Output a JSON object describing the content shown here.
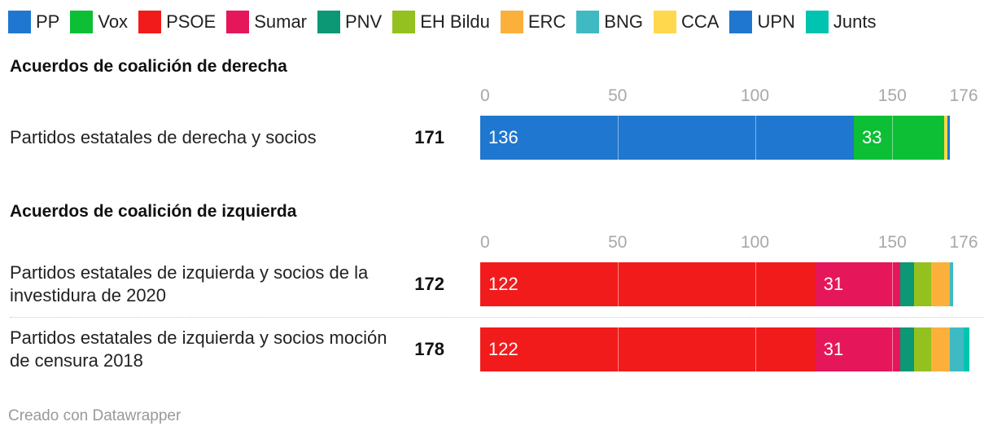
{
  "chart_data": {
    "type": "bar",
    "stacked": true,
    "orientation": "horizontal",
    "xlim": [
      0,
      176
    ],
    "ticks": [
      0,
      50,
      100,
      150,
      176
    ],
    "parties": [
      {
        "name": "PP",
        "color": "#1f77cf"
      },
      {
        "name": "Vox",
        "color": "#0cbf35"
      },
      {
        "name": "PSOE",
        "color": "#f21b1b"
      },
      {
        "name": "Sumar",
        "color": "#e5175a"
      },
      {
        "name": "PNV",
        "color": "#0c9874"
      },
      {
        "name": "EH Bildu",
        "color": "#94c11f"
      },
      {
        "name": "ERC",
        "color": "#fbb03b"
      },
      {
        "name": "BNG",
        "color": "#3fbac2"
      },
      {
        "name": "CCA",
        "color": "#ffd84d"
      },
      {
        "name": "UPN",
        "color": "#1f77cf"
      },
      {
        "name": "Junts",
        "color": "#00c4b0"
      }
    ],
    "groups": [
      {
        "title": "Acuerdos de coalición de derecha",
        "rows": [
          {
            "label": "Partidos estatales de derecha y socios",
            "total": "171",
            "segments": [
              {
                "party": "PP",
                "value": 136,
                "label": "136"
              },
              {
                "party": "Vox",
                "value": 33,
                "label": "33"
              },
              {
                "party": "CCA",
                "value": 1,
                "label": ""
              },
              {
                "party": "UPN",
                "value": 1,
                "label": ""
              }
            ]
          }
        ]
      },
      {
        "title": "Acuerdos de coalición de izquierda",
        "rows": [
          {
            "label": "Partidos estatales de izquierda y socios de la investidura de 2020",
            "total": "172",
            "segments": [
              {
                "party": "PSOE",
                "value": 122,
                "label": "122"
              },
              {
                "party": "Sumar",
                "value": 31,
                "label": "31"
              },
              {
                "party": "PNV",
                "value": 5,
                "label": ""
              },
              {
                "party": "EH Bildu",
                "value": 6,
                "label": ""
              },
              {
                "party": "ERC",
                "value": 7,
                "label": ""
              },
              {
                "party": "BNG",
                "value": 1,
                "label": ""
              }
            ]
          },
          {
            "label": "Partidos estatales de izquierda y socios moción de censura 2018",
            "total": "178",
            "segments": [
              {
                "party": "PSOE",
                "value": 122,
                "label": "122"
              },
              {
                "party": "Sumar",
                "value": 31,
                "label": "31"
              },
              {
                "party": "PNV",
                "value": 5,
                "label": ""
              },
              {
                "party": "EH Bildu",
                "value": 6,
                "label": ""
              },
              {
                "party": "ERC",
                "value": 7,
                "label": ""
              },
              {
                "party": "BNG",
                "value": 5,
                "label": ""
              },
              {
                "party": "Junts",
                "value": 2,
                "label": ""
              }
            ]
          }
        ]
      }
    ]
  },
  "footer": "Creado con Datawrapper"
}
